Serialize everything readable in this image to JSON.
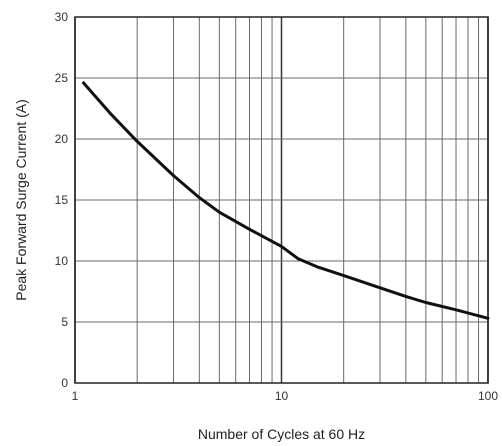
{
  "chart_data": {
    "type": "line",
    "xlabel": "Number of Cycles at 60 Hz",
    "ylabel": "Peak Forward Surge Current (A)",
    "x_scale": "log",
    "xlim": [
      1,
      100
    ],
    "ylim": [
      0,
      30
    ],
    "x_ticks": [
      1,
      10,
      100
    ],
    "x_tick_labels": [
      "1",
      "10",
      "100"
    ],
    "x_minor_gridlines": [
      2,
      3,
      4,
      5,
      6,
      7,
      8,
      9,
      20,
      30,
      40,
      50,
      60,
      70,
      80,
      90
    ],
    "y_ticks": [
      0,
      5,
      10,
      15,
      20,
      25,
      30
    ],
    "y_tick_labels": [
      "0",
      "5",
      "10",
      "15",
      "20",
      "25",
      "30"
    ],
    "grid": true,
    "legend": "none",
    "series": [
      {
        "color": "#111111",
        "x": [
          1.1,
          1.5,
          2,
          3,
          4,
          5,
          7,
          10,
          12,
          15,
          20,
          30,
          40,
          50,
          70,
          100
        ],
        "y": [
          24.6,
          22.0,
          19.8,
          17.0,
          15.2,
          14.0,
          12.6,
          11.2,
          10.2,
          9.5,
          8.8,
          7.8,
          7.1,
          6.6,
          6.0,
          5.3
        ]
      }
    ]
  }
}
